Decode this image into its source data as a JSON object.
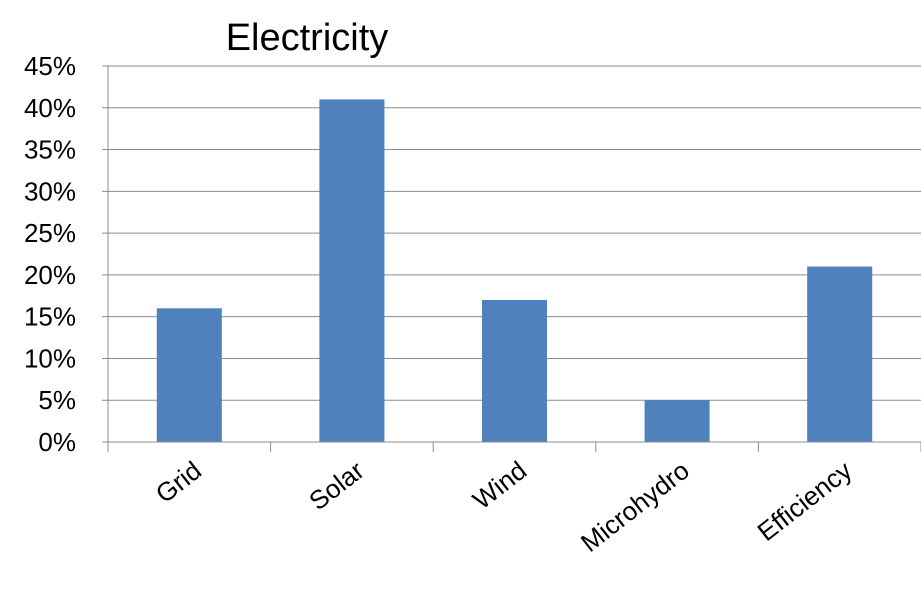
{
  "chart_data": {
    "type": "bar",
    "title": "Electricity",
    "categories": [
      "Grid",
      "Solar",
      "Wind",
      "Microhydro",
      "Efficiency"
    ],
    "values": [
      16,
      41,
      17,
      5,
      21
    ],
    "value_format": "percent",
    "ylim": [
      0,
      45
    ],
    "ytick_step": 5,
    "yticks": [
      "0%",
      "5%",
      "10%",
      "15%",
      "20%",
      "25%",
      "30%",
      "35%",
      "40%",
      "45%"
    ],
    "xlabel": "",
    "ylabel": "",
    "grid": true,
    "legend": "none",
    "bar_color": "#4f81bd"
  }
}
